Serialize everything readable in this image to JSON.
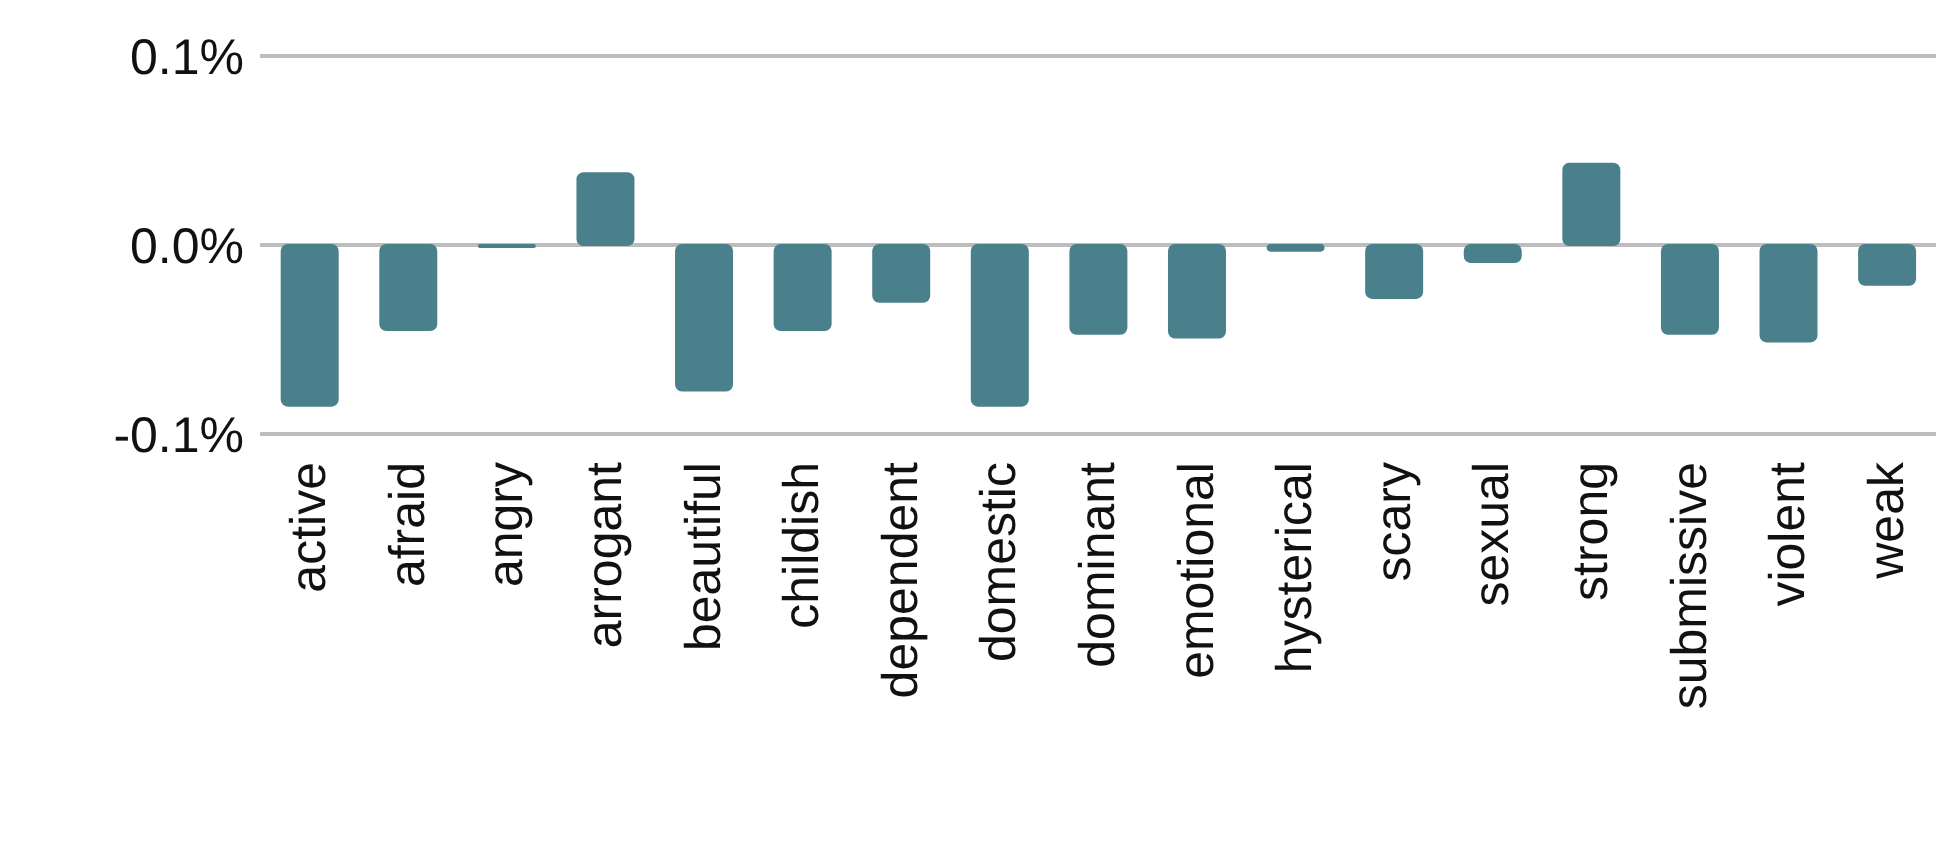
{
  "chart_data": {
    "type": "bar",
    "categories": [
      "active",
      "afraid",
      "angry",
      "arrogant",
      "beautiful",
      "childish",
      "dependent",
      "domestic",
      "dominant",
      "emotional",
      "hysterical",
      "scary",
      "sexual",
      "strong",
      "submissive",
      "violent",
      "weak"
    ],
    "values": [
      -0.085,
      -0.045,
      -0.001,
      0.038,
      -0.077,
      -0.045,
      -0.03,
      -0.085,
      -0.047,
      -0.049,
      -0.003,
      -0.028,
      -0.009,
      0.043,
      -0.047,
      -0.051,
      -0.021
    ],
    "color": "#4a808c",
    "ylim": [
      -0.1,
      0.1
    ],
    "yticks": [
      {
        "value": -0.1,
        "label": "-0.1%"
      },
      {
        "value": 0,
        "label": "0.0%"
      },
      {
        "value": 0.1,
        "label": "0.1%"
      }
    ],
    "grid": "y"
  }
}
